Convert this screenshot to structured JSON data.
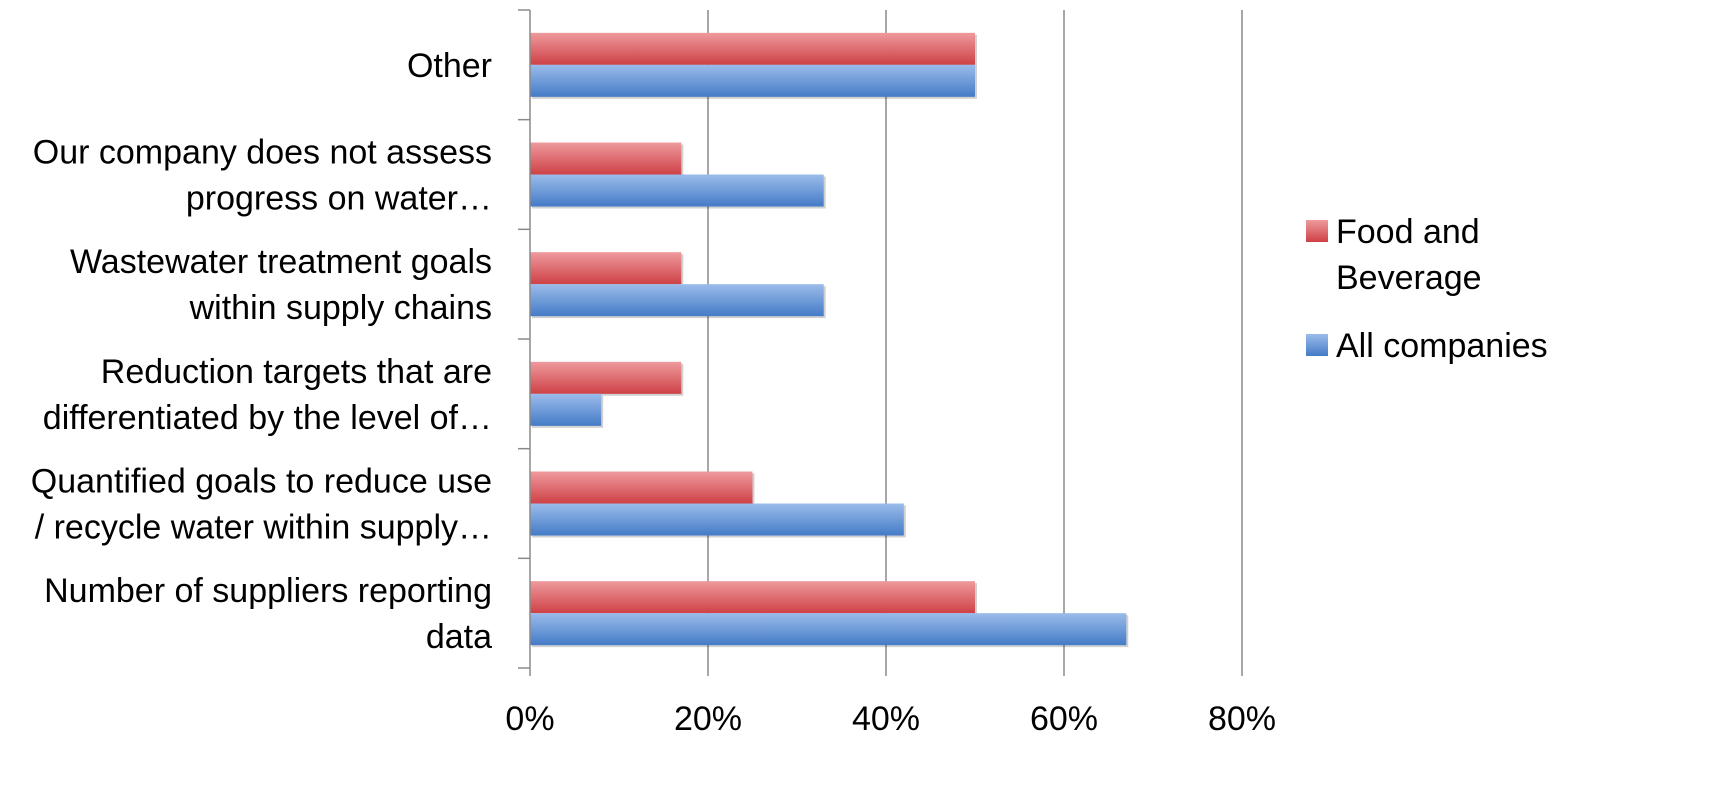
{
  "chart_data": {
    "type": "bar",
    "orientation": "horizontal",
    "categories": [
      [
        "Other"
      ],
      [
        "Our company does not assess",
        "progress on water…"
      ],
      [
        "Wastewater treatment goals",
        "within supply chains"
      ],
      [
        "Reduction targets that are",
        "differentiated by the level of…"
      ],
      [
        "Quantified goals to reduce use",
        "/ recycle water within supply…"
      ],
      [
        "Number of suppliers reporting",
        "data"
      ]
    ],
    "series": [
      {
        "name": "Food and Beverage",
        "legend_lines": [
          "Food and",
          "Beverage"
        ],
        "values": [
          0.5,
          0.17,
          0.17,
          0.17,
          0.25,
          0.5
        ],
        "color": "#e0474c"
      },
      {
        "name": "All companies",
        "legend_lines": [
          "All companies"
        ],
        "values": [
          0.5,
          0.33,
          0.33,
          0.08,
          0.42,
          0.67
        ],
        "color": "#4a86d8"
      }
    ],
    "xlim": [
      0,
      0.8
    ],
    "xticks": [
      0,
      0.2,
      0.4,
      0.6,
      0.8
    ],
    "xtick_labels": [
      "0%",
      "20%",
      "40%",
      "60%",
      "80%"
    ],
    "grid": "vertical",
    "legend_position": "right",
    "title": "",
    "xlabel": "",
    "ylabel": ""
  }
}
